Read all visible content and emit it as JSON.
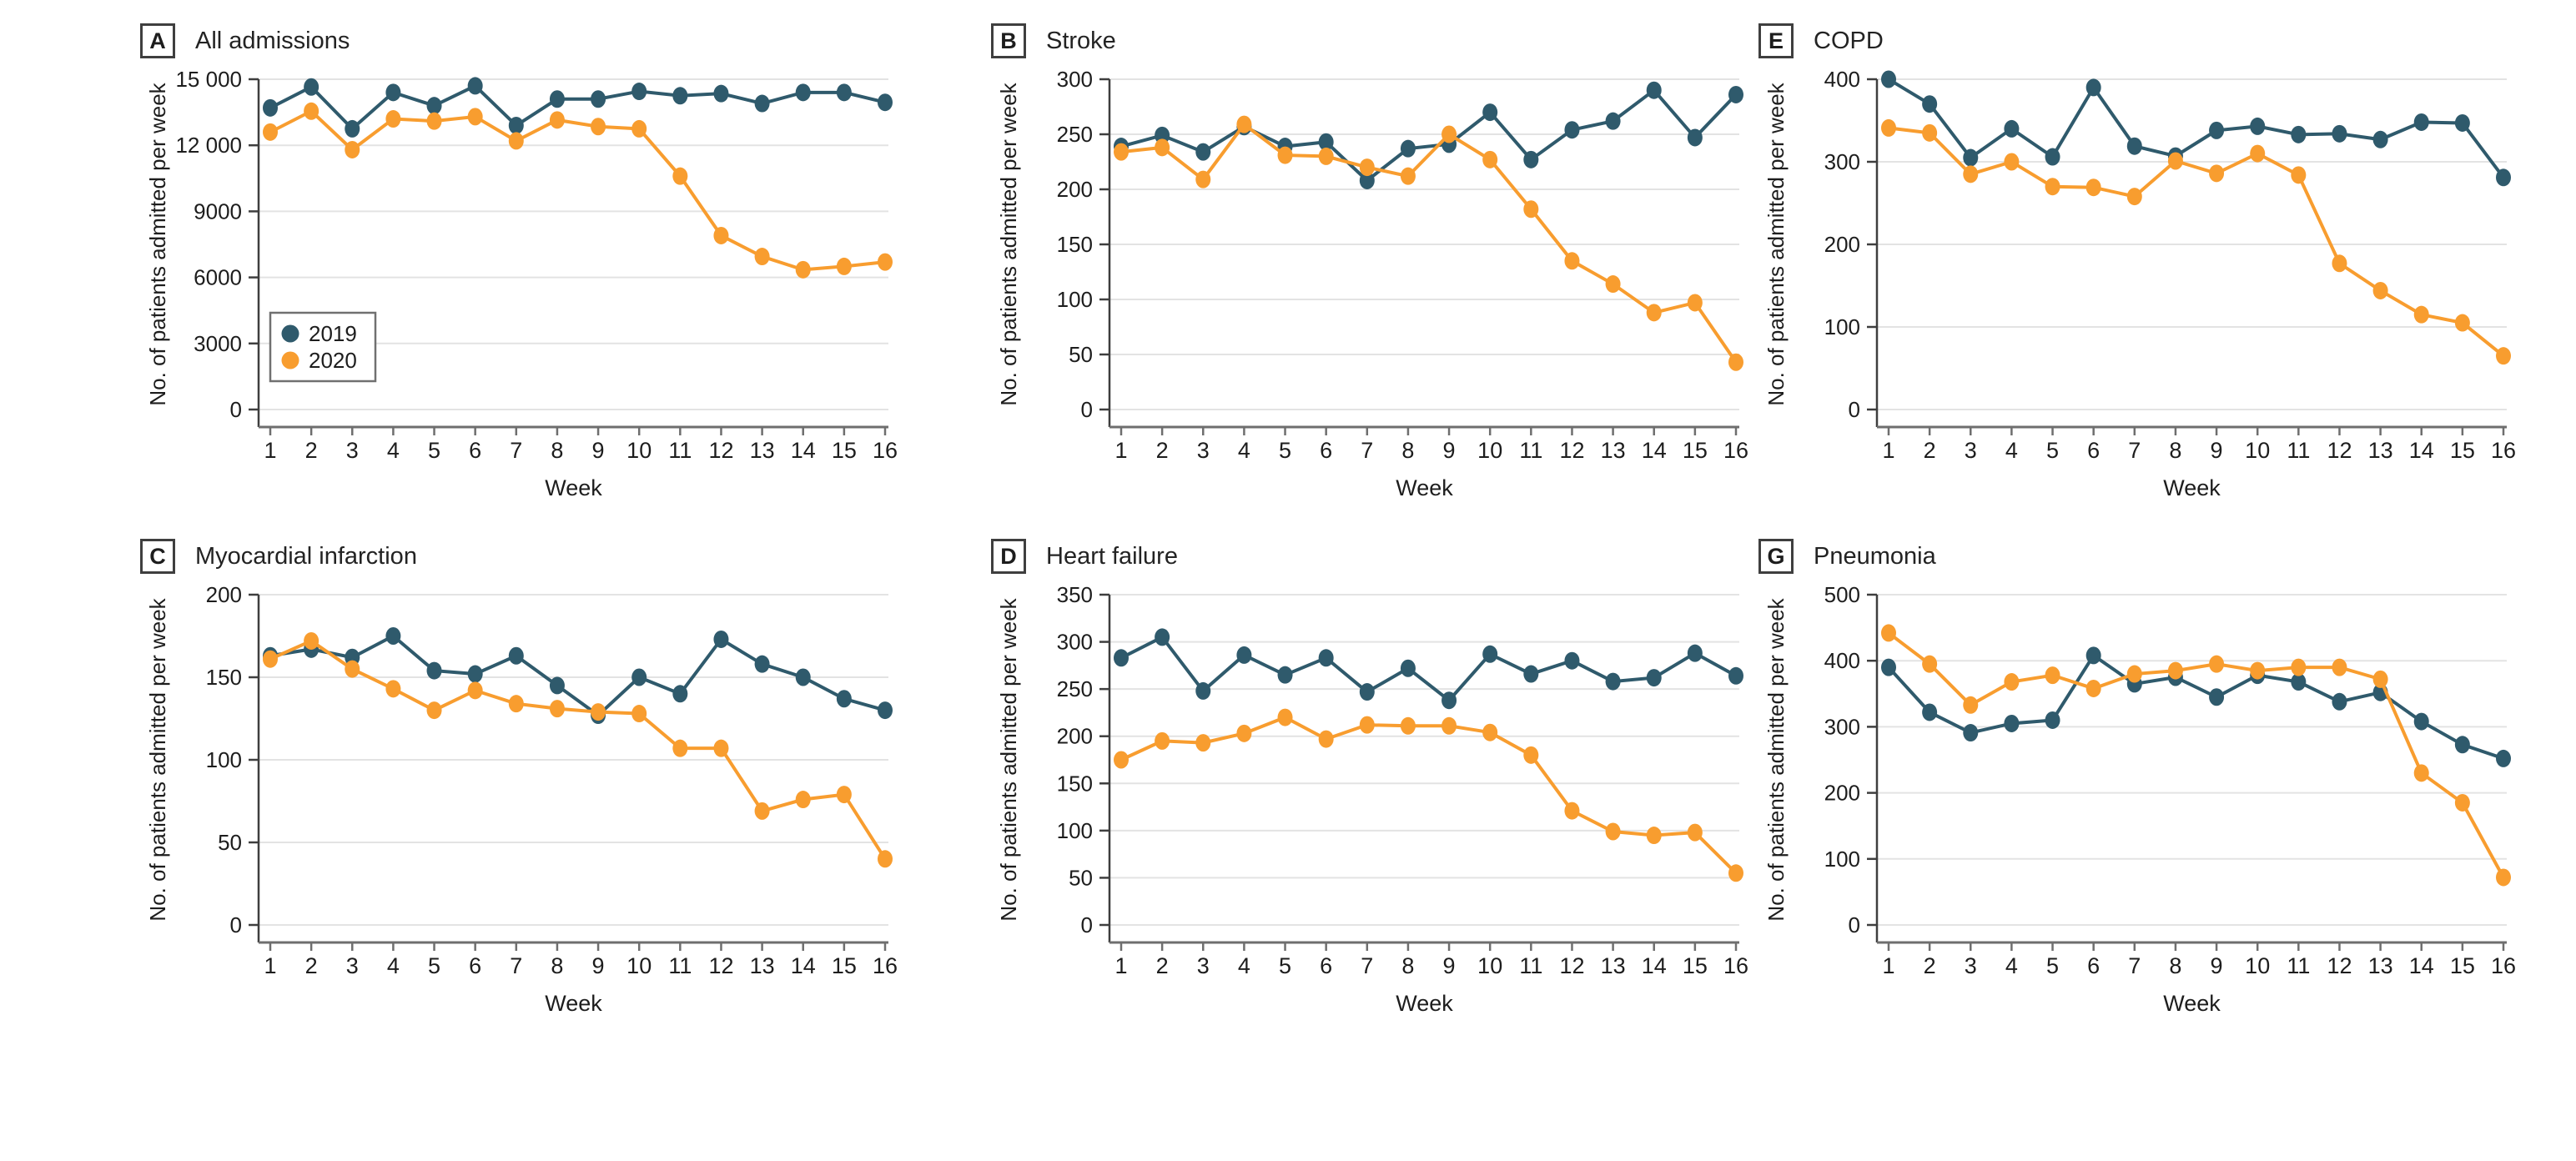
{
  "figure": {
    "y_axis_label": "No. of patients admitted per week",
    "x_axis_label": "Week",
    "weeks": [
      "1",
      "2",
      "3",
      "4",
      "5",
      "6",
      "7",
      "8",
      "9",
      "10",
      "11",
      "12",
      "13",
      "14",
      "15",
      "16"
    ],
    "legend": [
      {
        "label": "2019",
        "color": "#2F5A6C"
      },
      {
        "label": "2020",
        "color": "#F89D2F"
      }
    ]
  },
  "colors": {
    "series_2019": "#2F5A6C",
    "series_2020": "#F89D2F",
    "gridline": "#E3E3E3",
    "x_axis": "#6E6E6E",
    "y_axis": "#3E3E3E",
    "text": "#1D1D1D",
    "background": "#FFFFFF"
  },
  "chart_data": [
    {
      "type": "line",
      "panel_label": "A",
      "title": "All admissions",
      "xlabel": "Week",
      "ylabel": "No. of patients admitted per week",
      "ylim": [
        0,
        15000
      ],
      "grid": true,
      "legend_position": "lower-left-inside",
      "show_legend": true,
      "yticks": [
        {
          "v": 0,
          "label": "0"
        },
        {
          "v": 3000,
          "label": "3000"
        },
        {
          "v": 6000,
          "label": "6000"
        },
        {
          "v": 9000,
          "label": "9000"
        },
        {
          "v": 12000,
          "label": "12 000"
        },
        {
          "v": 15000,
          "label": "15 000"
        }
      ],
      "categories": [
        1,
        2,
        3,
        4,
        5,
        6,
        7,
        8,
        9,
        10,
        11,
        12,
        13,
        14,
        15,
        16
      ],
      "series": [
        {
          "name": "2019",
          "color": "#2F5A6C",
          "values": [
            13700,
            14650,
            12750,
            14400,
            13800,
            14700,
            12900,
            14100,
            14100,
            14450,
            14250,
            14350,
            13900,
            14400,
            14400,
            13950
          ]
        },
        {
          "name": "2020",
          "color": "#F89D2F",
          "values": [
            12600,
            13550,
            11800,
            13200,
            13100,
            13300,
            12200,
            13150,
            12850,
            12750,
            10600,
            7900,
            6950,
            6350,
            6500,
            6700
          ]
        }
      ]
    },
    {
      "type": "line",
      "panel_label": "B",
      "title": "Stroke",
      "xlabel": "Week",
      "ylabel": "No. of patients admitted per week",
      "ylim": [
        0,
        300
      ],
      "grid": true,
      "show_legend": false,
      "yticks": [
        {
          "v": 0,
          "label": "0"
        },
        {
          "v": 50,
          "label": "50"
        },
        {
          "v": 100,
          "label": "100"
        },
        {
          "v": 150,
          "label": "150"
        },
        {
          "v": 200,
          "label": "200"
        },
        {
          "v": 250,
          "label": "250"
        },
        {
          "v": 300,
          "label": "300"
        }
      ],
      "categories": [
        1,
        2,
        3,
        4,
        5,
        6,
        7,
        8,
        9,
        10,
        11,
        12,
        13,
        14,
        15,
        16
      ],
      "series": [
        {
          "name": "2019",
          "color": "#2F5A6C",
          "values": [
            239,
            249,
            234,
            257,
            239,
            243,
            208,
            237,
            241,
            270,
            227,
            254,
            262,
            290,
            247,
            286
          ]
        },
        {
          "name": "2020",
          "color": "#F89D2F",
          "values": [
            234,
            238,
            209,
            259,
            231,
            230,
            220,
            212,
            250,
            227,
            182,
            135,
            114,
            88,
            97,
            43
          ]
        }
      ]
    },
    {
      "type": "line",
      "panel_label": "E",
      "title": "COPD",
      "xlabel": "Week",
      "ylabel": "No. of patients admitted per week",
      "ylim": [
        0,
        400
      ],
      "grid": true,
      "show_legend": false,
      "yticks": [
        {
          "v": 0,
          "label": "0"
        },
        {
          "v": 100,
          "label": "100"
        },
        {
          "v": 200,
          "label": "200"
        },
        {
          "v": 300,
          "label": "300"
        },
        {
          "v": 400,
          "label": "400"
        }
      ],
      "categories": [
        1,
        2,
        3,
        4,
        5,
        6,
        7,
        8,
        9,
        10,
        11,
        12,
        13,
        14,
        15,
        16
      ],
      "series": [
        {
          "name": "2019",
          "color": "#2F5A6C",
          "values": [
            400,
            370,
            305,
            340,
            306,
            390,
            319,
            307,
            338,
            343,
            333,
            334,
            327,
            348,
            347,
            281
          ]
        },
        {
          "name": "2020",
          "color": "#F89D2F",
          "values": [
            341,
            335,
            285,
            300,
            270,
            269,
            258,
            301,
            286,
            310,
            284,
            177,
            144,
            115,
            105,
            65
          ]
        }
      ]
    },
    {
      "type": "line",
      "panel_label": "C",
      "title": "Myocardial infarction",
      "xlabel": "Week",
      "ylabel": "No. of patients admitted per week",
      "ylim": [
        0,
        200
      ],
      "grid": true,
      "show_legend": false,
      "yticks": [
        {
          "v": 0,
          "label": "0"
        },
        {
          "v": 50,
          "label": "50"
        },
        {
          "v": 100,
          "label": "100"
        },
        {
          "v": 150,
          "label": "150"
        },
        {
          "v": 200,
          "label": "200"
        }
      ],
      "categories": [
        1,
        2,
        3,
        4,
        5,
        6,
        7,
        8,
        9,
        10,
        11,
        12,
        13,
        14,
        15,
        16
      ],
      "series": [
        {
          "name": "2019",
          "color": "#2F5A6C",
          "values": [
            163,
            167,
            162,
            175,
            154,
            152,
            163,
            145,
            127,
            150,
            140,
            173,
            158,
            150,
            137,
            130
          ]
        },
        {
          "name": "2020",
          "color": "#F89D2F",
          "values": [
            161,
            172,
            155,
            143,
            130,
            142,
            134,
            131,
            129,
            128,
            107,
            107,
            69,
            76,
            79,
            40
          ]
        }
      ]
    },
    {
      "type": "line",
      "panel_label": "D",
      "title": "Heart failure",
      "xlabel": "Week",
      "ylabel": "No. of patients admitted per week",
      "ylim": [
        0,
        350
      ],
      "grid": true,
      "show_legend": false,
      "yticks": [
        {
          "v": 0,
          "label": "0"
        },
        {
          "v": 50,
          "label": "50"
        },
        {
          "v": 100,
          "label": "100"
        },
        {
          "v": 150,
          "label": "150"
        },
        {
          "v": 200,
          "label": "200"
        },
        {
          "v": 250,
          "label": "250"
        },
        {
          "v": 300,
          "label": "300"
        },
        {
          "v": 350,
          "label": "350"
        }
      ],
      "categories": [
        1,
        2,
        3,
        4,
        5,
        6,
        7,
        8,
        9,
        10,
        11,
        12,
        13,
        14,
        15,
        16
      ],
      "series": [
        {
          "name": "2019",
          "color": "#2F5A6C",
          "values": [
            283,
            305,
            248,
            286,
            265,
            283,
            247,
            272,
            238,
            287,
            266,
            280,
            258,
            262,
            288,
            264
          ]
        },
        {
          "name": "2020",
          "color": "#F89D2F",
          "values": [
            175,
            195,
            193,
            203,
            220,
            197,
            212,
            211,
            211,
            204,
            180,
            121,
            99,
            95,
            98,
            55
          ]
        }
      ]
    },
    {
      "type": "line",
      "panel_label": "G",
      "title": "Pneumonia",
      "xlabel": "Week",
      "ylabel": "No. of patients admitted per week",
      "ylim": [
        0,
        500
      ],
      "grid": true,
      "show_legend": false,
      "yticks": [
        {
          "v": 0,
          "label": "0"
        },
        {
          "v": 100,
          "label": "100"
        },
        {
          "v": 200,
          "label": "200"
        },
        {
          "v": 300,
          "label": "300"
        },
        {
          "v": 400,
          "label": "400"
        },
        {
          "v": 500,
          "label": "500"
        }
      ],
      "categories": [
        1,
        2,
        3,
        4,
        5,
        6,
        7,
        8,
        9,
        10,
        11,
        12,
        13,
        14,
        15,
        16
      ],
      "series": [
        {
          "name": "2019",
          "color": "#2F5A6C",
          "values": [
            390,
            322,
            291,
            305,
            310,
            408,
            365,
            375,
            345,
            378,
            368,
            338,
            352,
            308,
            273,
            252
          ]
        },
        {
          "name": "2020",
          "color": "#F89D2F",
          "values": [
            442,
            395,
            333,
            368,
            378,
            358,
            380,
            385,
            395,
            385,
            390,
            390,
            372,
            230,
            185,
            72
          ]
        }
      ]
    }
  ]
}
